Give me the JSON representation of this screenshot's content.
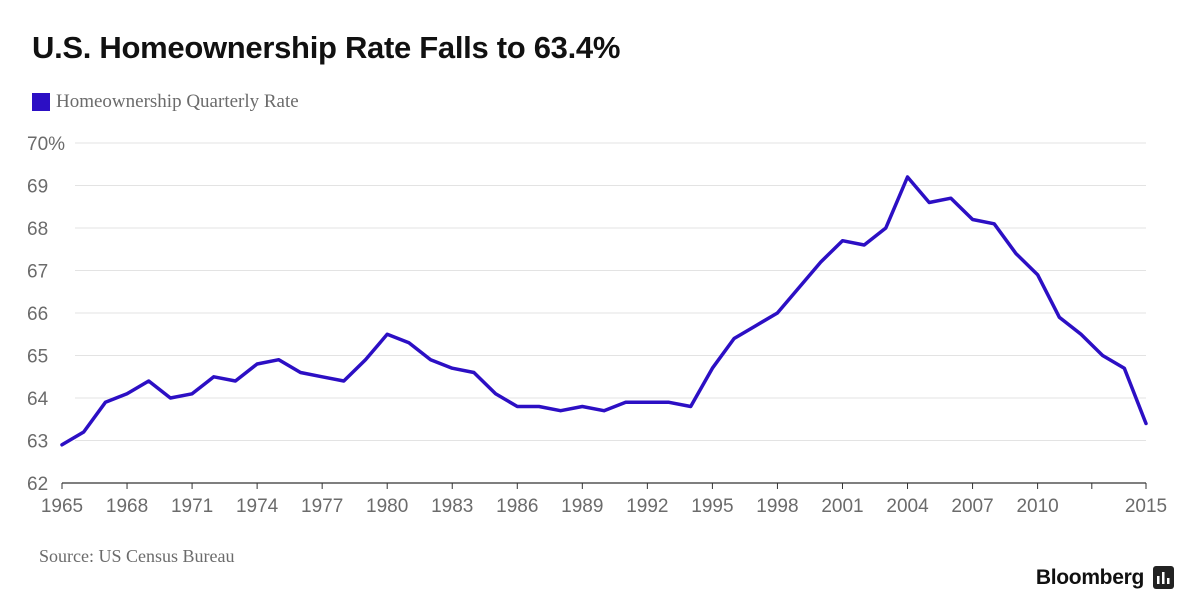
{
  "chart_data": {
    "type": "line",
    "title": "U.S. Homeownership Rate Falls to 63.4%",
    "legend": {
      "label": "Homeownership Quarterly Rate",
      "placement": "top-left"
    },
    "series": [
      {
        "name": "Homeownership Quarterly Rate",
        "color": "#2c0fc4",
        "x": [
          1965,
          1966,
          1967,
          1968,
          1969,
          1970,
          1971,
          1972,
          1973,
          1974,
          1975,
          1976,
          1977,
          1978,
          1979,
          1980,
          1981,
          1982,
          1983,
          1984,
          1985,
          1986,
          1987,
          1988,
          1989,
          1990,
          1991,
          1992,
          1993,
          1994,
          1995,
          1996,
          1997,
          1998,
          1999,
          2000,
          2001,
          2002,
          2003,
          2004,
          2005,
          2006,
          2007,
          2008,
          2009,
          2010,
          2011,
          2012,
          2013,
          2014,
          2015
        ],
        "values": [
          62.9,
          63.2,
          63.9,
          64.1,
          64.4,
          64.0,
          64.1,
          64.5,
          64.4,
          64.8,
          64.9,
          64.6,
          64.5,
          64.4,
          64.9,
          65.5,
          65.3,
          64.9,
          64.7,
          64.6,
          64.1,
          63.8,
          63.8,
          63.7,
          63.8,
          63.7,
          63.9,
          63.9,
          63.9,
          63.8,
          64.7,
          65.4,
          65.7,
          66.0,
          66.6,
          67.2,
          67.7,
          67.6,
          68.0,
          69.2,
          68.6,
          68.7,
          68.2,
          68.1,
          67.4,
          66.9,
          65.9,
          65.5,
          65.0,
          64.7,
          63.4
        ]
      }
    ],
    "xlim": [
      1965,
      2015
    ],
    "ylim": [
      62,
      70
    ],
    "x_ticks": [
      {
        "value": 1965,
        "label": "1965"
      },
      {
        "value": 1968,
        "label": "1968"
      },
      {
        "value": 1971,
        "label": "1971"
      },
      {
        "value": 1974,
        "label": "1974"
      },
      {
        "value": 1977,
        "label": "1977"
      },
      {
        "value": 1980,
        "label": "1980"
      },
      {
        "value": 1983,
        "label": "1983"
      },
      {
        "value": 1986,
        "label": "1986"
      },
      {
        "value": 1989,
        "label": "1989"
      },
      {
        "value": 1992,
        "label": "1992"
      },
      {
        "value": 1995,
        "label": "1995"
      },
      {
        "value": 1998,
        "label": "1998"
      },
      {
        "value": 2001,
        "label": "2001"
      },
      {
        "value": 2004,
        "label": "2004"
      },
      {
        "value": 2007,
        "label": "2007"
      },
      {
        "value": 2010,
        "label": "2010"
      },
      {
        "value": 2015,
        "label": "2015"
      }
    ],
    "y_ticks": [
      {
        "value": 70,
        "label": "70%"
      },
      {
        "value": 69,
        "label": "69"
      },
      {
        "value": 68,
        "label": "68"
      },
      {
        "value": 67,
        "label": "67"
      },
      {
        "value": 66,
        "label": "66"
      },
      {
        "value": 65,
        "label": "65"
      },
      {
        "value": 64,
        "label": "64"
      },
      {
        "value": 63,
        "label": "63"
      },
      {
        "value": 62,
        "label": "62"
      }
    ],
    "grid": true
  },
  "source": "Source: US Census Bureau",
  "brand": "Bloomberg",
  "colors": {
    "line": "#2c0fc4",
    "grid": "#e3e3e3",
    "axis": "#333333",
    "text": "#6b6b6b"
  }
}
